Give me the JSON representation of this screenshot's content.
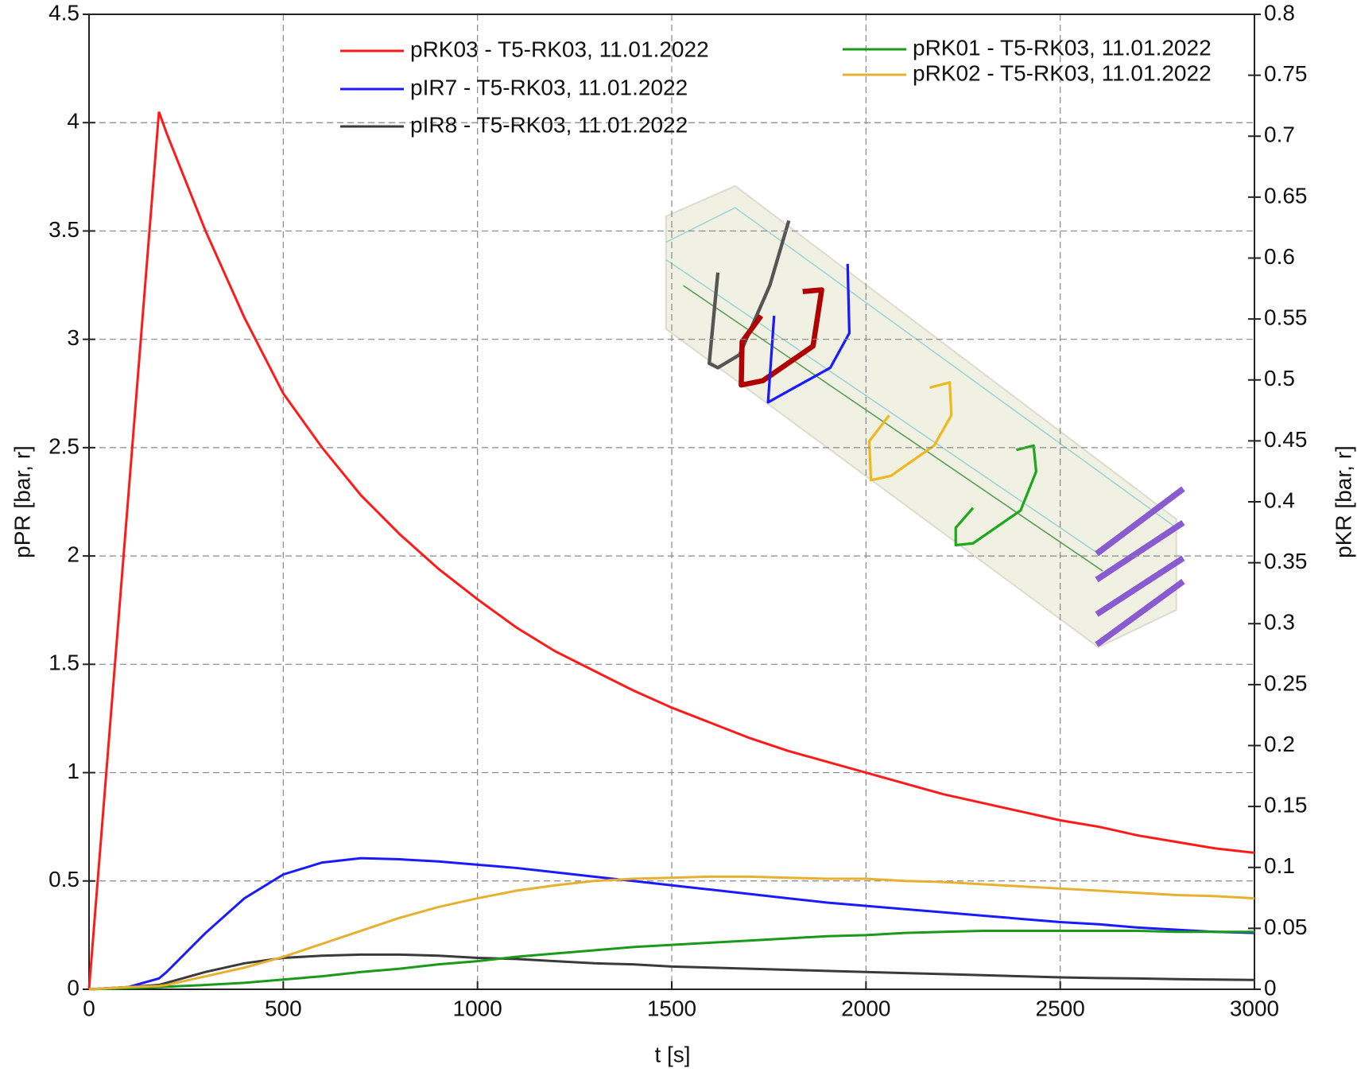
{
  "chart_data": {
    "type": "line",
    "xlabel": "t [s]",
    "ylabel": "pPR [bar, r]",
    "y2label": "pKR [bar, r]",
    "x": [
      0,
      100,
      180,
      200,
      300,
      400,
      500,
      600,
      700,
      800,
      900,
      1000,
      1100,
      1200,
      1300,
      1400,
      1500,
      1600,
      1700,
      1800,
      1900,
      2000,
      2100,
      2200,
      2300,
      2400,
      2500,
      2600,
      2700,
      2800,
      2900,
      3000
    ],
    "series": [
      {
        "name": "pRK03 - T5-RK03, 11.01.2022",
        "color": "#ff1a1a",
        "values": [
          0,
          2.25,
          4.05,
          3.95,
          3.5,
          3.1,
          2.75,
          2.5,
          2.28,
          2.1,
          1.94,
          1.8,
          1.67,
          1.56,
          1.47,
          1.38,
          1.3,
          1.23,
          1.16,
          1.1,
          1.05,
          1.0,
          0.95,
          0.9,
          0.86,
          0.82,
          0.78,
          0.75,
          0.71,
          0.68,
          0.65,
          0.63
        ]
      },
      {
        "name": "pIR7 - T5-RK03, 11.01.2022",
        "color": "#1a1aff",
        "values": [
          0,
          0.01,
          0.05,
          0.08,
          0.26,
          0.42,
          0.53,
          0.585,
          0.605,
          0.6,
          0.59,
          0.575,
          0.56,
          0.54,
          0.52,
          0.5,
          0.48,
          0.46,
          0.44,
          0.42,
          0.4,
          0.385,
          0.37,
          0.355,
          0.34,
          0.325,
          0.31,
          0.3,
          0.285,
          0.275,
          0.265,
          0.26
        ]
      },
      {
        "name": "pIR8 - T5-RK03, 11.01.2022",
        "color": "#3a3a3a",
        "values": [
          0,
          0.01,
          0.02,
          0.03,
          0.08,
          0.12,
          0.145,
          0.155,
          0.16,
          0.16,
          0.155,
          0.145,
          0.14,
          0.13,
          0.12,
          0.115,
          0.105,
          0.1,
          0.095,
          0.09,
          0.085,
          0.08,
          0.075,
          0.07,
          0.065,
          0.06,
          0.055,
          0.052,
          0.05,
          0.047,
          0.045,
          0.043
        ]
      },
      {
        "name": "pRK01 - T5-RK03, 11.01.2022",
        "color": "#1a9a1a",
        "values": [
          0,
          0.005,
          0.01,
          0.012,
          0.02,
          0.03,
          0.045,
          0.06,
          0.08,
          0.095,
          0.115,
          0.13,
          0.15,
          0.165,
          0.18,
          0.195,
          0.205,
          0.215,
          0.225,
          0.235,
          0.245,
          0.25,
          0.26,
          0.265,
          0.27,
          0.27,
          0.27,
          0.27,
          0.27,
          0.265,
          0.265,
          0.265
        ]
      },
      {
        "name": "pRK02 - T5-RK03, 11.01.2022",
        "color": "#e8b030",
        "values": [
          0,
          0.01,
          0.015,
          0.02,
          0.06,
          0.1,
          0.15,
          0.21,
          0.27,
          0.33,
          0.38,
          0.42,
          0.455,
          0.48,
          0.5,
          0.51,
          0.515,
          0.52,
          0.52,
          0.515,
          0.51,
          0.51,
          0.5,
          0.495,
          0.485,
          0.475,
          0.465,
          0.455,
          0.445,
          0.435,
          0.43,
          0.42
        ]
      }
    ],
    "xlim": [
      0,
      3000
    ],
    "xticks": [
      0,
      500,
      1000,
      1500,
      2000,
      2500,
      3000
    ],
    "ylim": [
      0,
      4.5
    ],
    "yticks": [
      0,
      0.5,
      1,
      1.5,
      2,
      2.5,
      3,
      3.5,
      4,
      4.5
    ],
    "y2lim": [
      0,
      0.8
    ],
    "y2ticks": [
      0,
      0.05,
      0.1,
      0.15,
      0.2,
      0.25,
      0.3,
      0.35,
      0.4,
      0.45,
      0.5,
      0.55,
      0.6,
      0.65,
      0.7,
      0.75,
      0.8
    ],
    "grid": true
  }
}
